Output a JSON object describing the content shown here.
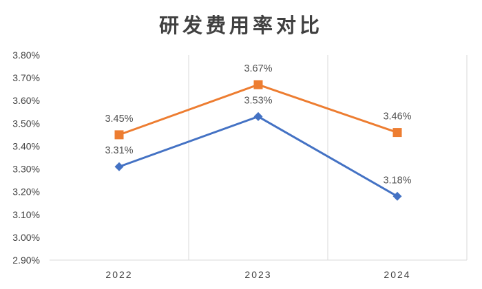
{
  "chart_data": {
    "type": "line",
    "title": "研发费用率对比",
    "categories": [
      "2022",
      "2023",
      "2024"
    ],
    "y_ticks": [
      "2.90%",
      "3.00%",
      "3.10%",
      "3.20%",
      "3.30%",
      "3.40%",
      "3.50%",
      "3.60%",
      "3.70%",
      "3.80%"
    ],
    "ylim": [
      2.9,
      3.8
    ],
    "grid": "vertical",
    "legend": "none",
    "series": [
      {
        "color": "#ED7D31",
        "marker": "square",
        "values": [
          3.45,
          3.67,
          3.46
        ],
        "labels": [
          "3.45%",
          "3.67%",
          "3.46%"
        ]
      },
      {
        "color": "#4472C4",
        "marker": "diamond",
        "values": [
          3.31,
          3.53,
          3.18
        ],
        "labels": [
          "3.31%",
          "3.53%",
          "3.18%"
        ]
      }
    ]
  }
}
